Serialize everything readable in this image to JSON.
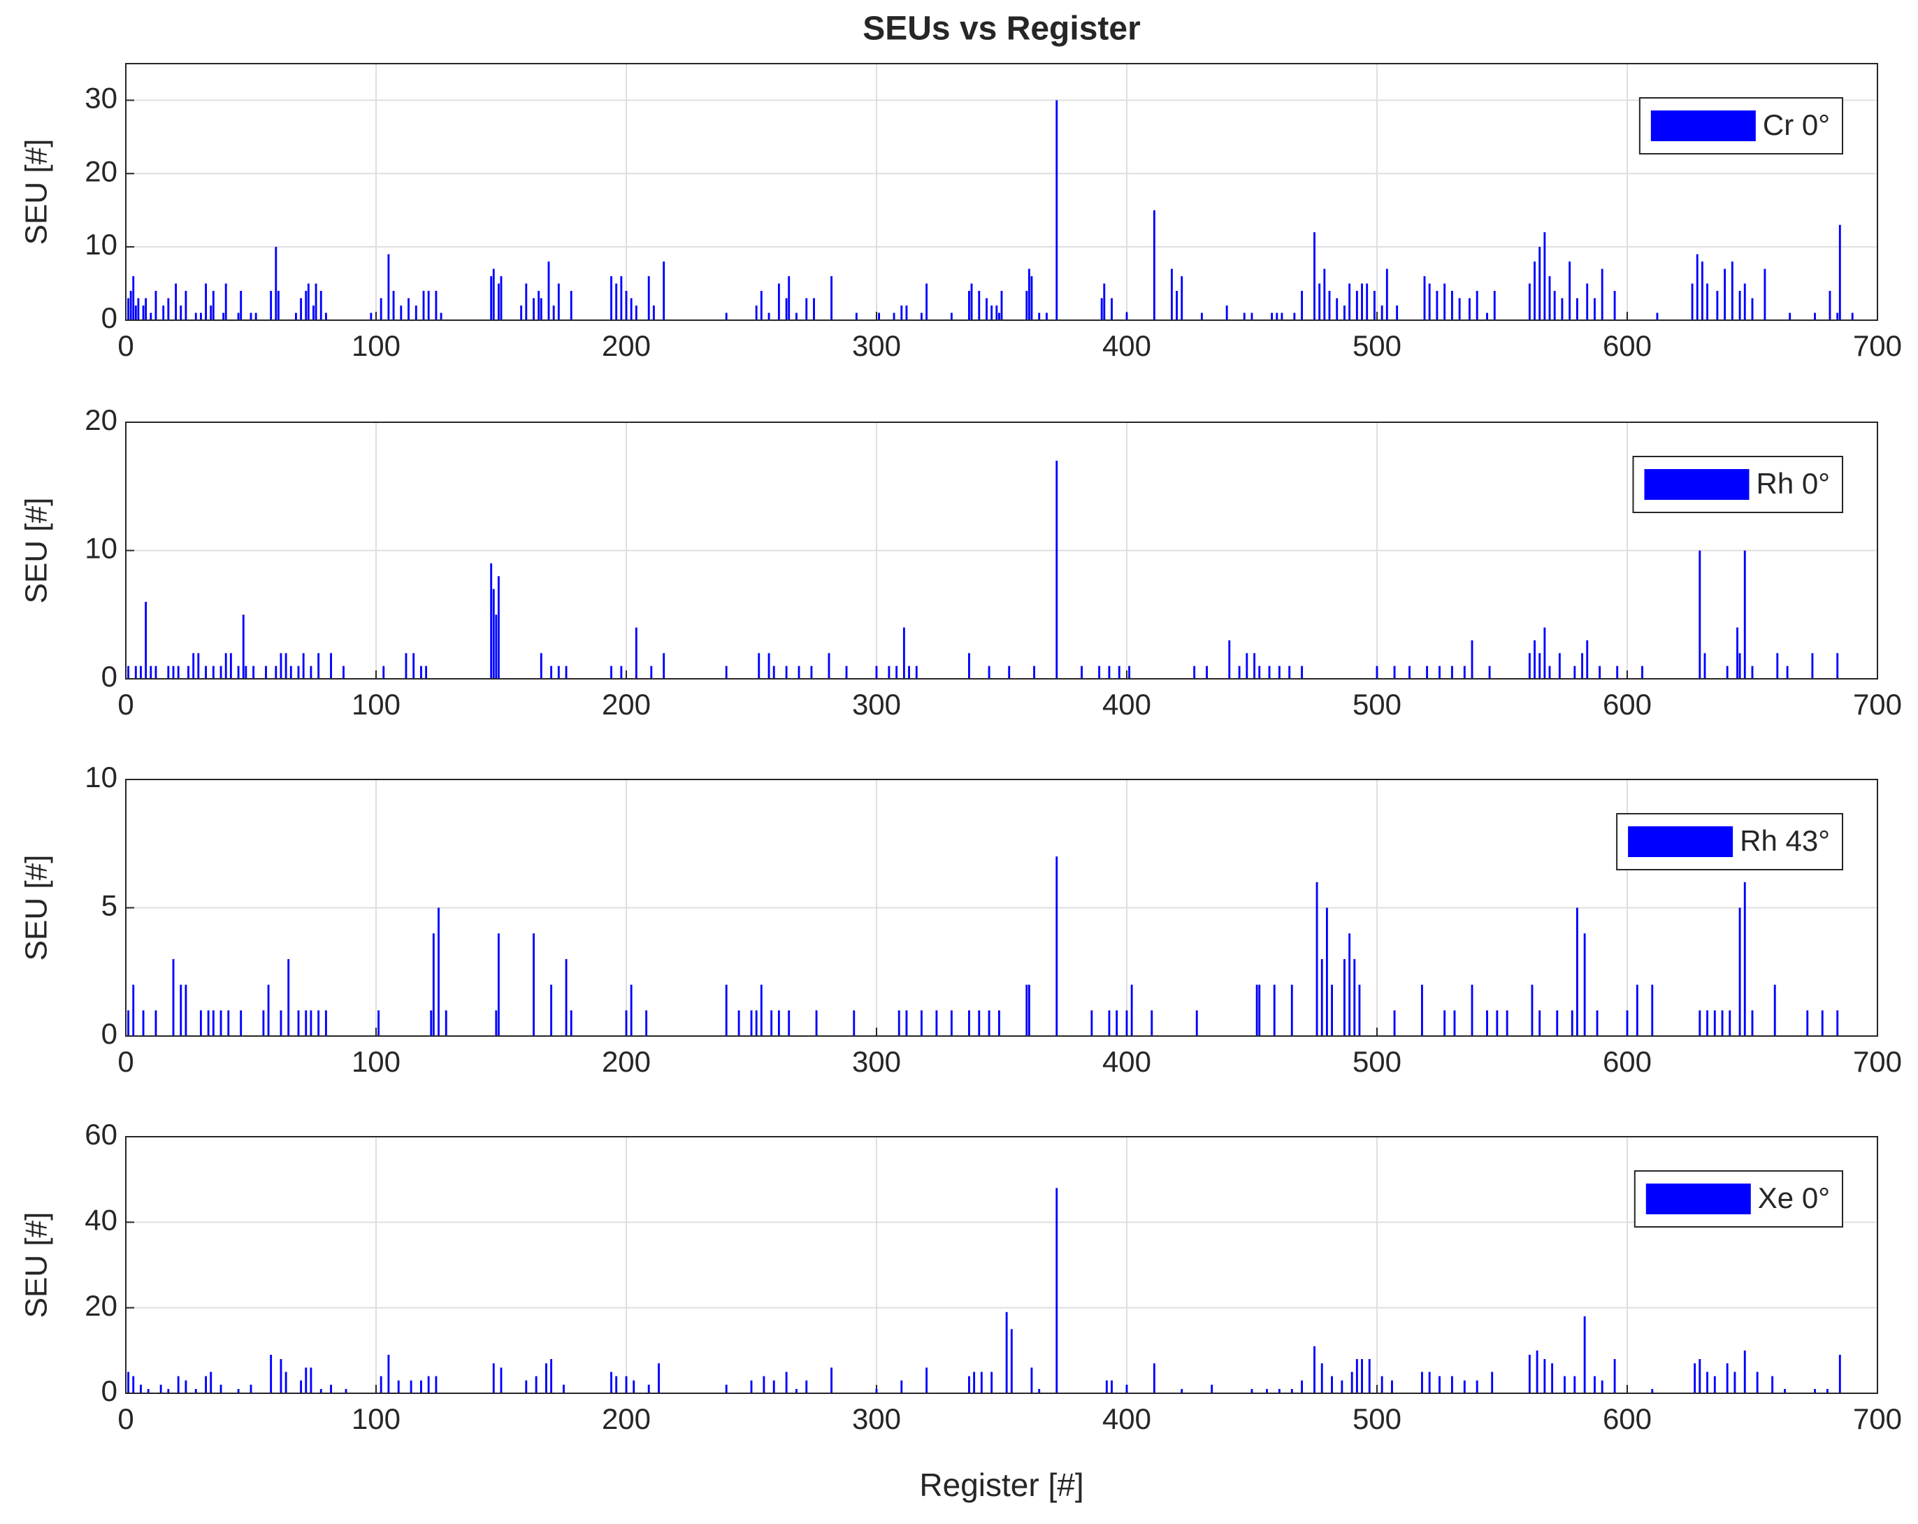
{
  "chart_data": [
    {
      "type": "bar",
      "title": "SEUs vs Register",
      "ylabel": "SEU [#]",
      "xlim": [
        0,
        700
      ],
      "xticks": [
        0,
        100,
        200,
        300,
        400,
        500,
        600,
        700
      ],
      "ylim": [
        0,
        35
      ],
      "yticks": [
        0,
        10,
        20,
        30
      ],
      "grid": true,
      "legend": "upper right",
      "x": [
        1,
        2,
        3,
        4,
        5,
        7,
        8,
        10,
        12,
        15,
        17,
        20,
        22,
        24,
        28,
        30,
        32,
        34,
        35,
        39,
        40,
        45,
        46,
        50,
        52,
        58,
        60,
        61,
        68,
        70,
        72,
        73,
        75,
        76,
        78,
        80,
        98,
        102,
        105,
        107,
        110,
        113,
        116,
        119,
        121,
        124,
        126,
        146,
        147,
        149,
        150,
        158,
        160,
        163,
        165,
        166,
        169,
        171,
        173,
        178,
        194,
        196,
        198,
        200,
        202,
        204,
        209,
        211,
        215,
        240,
        252,
        254,
        257,
        261,
        264,
        265,
        268,
        272,
        275,
        282,
        292,
        301,
        307,
        310,
        312,
        318,
        320,
        330,
        337,
        338,
        341,
        344,
        346,
        348,
        349,
        350,
        360,
        361,
        362,
        365,
        368,
        372,
        390,
        391,
        394,
        400,
        411,
        418,
        420,
        422,
        430,
        440,
        447,
        450,
        458,
        460,
        462,
        467,
        470,
        475,
        477,
        479,
        481,
        484,
        487,
        489,
        492,
        494,
        496,
        499,
        502,
        504,
        508,
        519,
        521,
        524,
        527,
        530,
        533,
        537,
        540,
        544,
        547,
        561,
        563,
        565,
        567,
        569,
        571,
        574,
        577,
        580,
        584,
        587,
        590,
        595,
        612,
        626,
        628,
        630,
        632,
        636,
        639,
        642,
        645,
        647,
        650,
        655,
        665,
        675,
        681,
        684,
        685,
        690
      ],
      "series": [
        {
          "name": "Cr 0°",
          "color": "#0000ff",
          "values": [
            3,
            4,
            6,
            2,
            3,
            2,
            3,
            1,
            4,
            2,
            3,
            5,
            2,
            4,
            1,
            1,
            5,
            2,
            4,
            1,
            5,
            1,
            4,
            1,
            1,
            4,
            10,
            4,
            1,
            3,
            4,
            5,
            2,
            5,
            4,
            1,
            1,
            3,
            9,
            4,
            2,
            3,
            2,
            4,
            4,
            4,
            1,
            6,
            7,
            5,
            6,
            2,
            5,
            3,
            4,
            3,
            8,
            2,
            5,
            4,
            6,
            5,
            6,
            4,
            3,
            2,
            6,
            2,
            8,
            1,
            2,
            4,
            1,
            5,
            3,
            6,
            1,
            3,
            3,
            6,
            1,
            1,
            1,
            2,
            2,
            1,
            5,
            1,
            4,
            5,
            4,
            3,
            2,
            2,
            1,
            4,
            4,
            7,
            6,
            1,
            1,
            30,
            3,
            5,
            3,
            1,
            15,
            7,
            4,
            6,
            1,
            2,
            1,
            1,
            1,
            1,
            1,
            1,
            4,
            12,
            5,
            7,
            4,
            3,
            2,
            5,
            4,
            5,
            5,
            4,
            2,
            7,
            2,
            6,
            5,
            4,
            5,
            4,
            3,
            3,
            4,
            1,
            4,
            5,
            8,
            10,
            12,
            6,
            4,
            3,
            8,
            3,
            5,
            3,
            7,
            4,
            1,
            5,
            9,
            8,
            5,
            4,
            7,
            8,
            4,
            5,
            3,
            7,
            1,
            1,
            4,
            1,
            13,
            1
          ]
        }
      ]
    },
    {
      "type": "bar",
      "ylabel": "SEU [#]",
      "xlim": [
        0,
        700
      ],
      "xticks": [
        0,
        100,
        200,
        300,
        400,
        500,
        600,
        700
      ],
      "ylim": [
        0,
        20
      ],
      "yticks": [
        0,
        10,
        20
      ],
      "grid": true,
      "legend": "upper right",
      "x": [
        1,
        4,
        6,
        8,
        10,
        12,
        17,
        19,
        21,
        25,
        27,
        29,
        32,
        35,
        38,
        40,
        42,
        45,
        47,
        48,
        51,
        56,
        60,
        62,
        64,
        66,
        69,
        71,
        74,
        77,
        82,
        87,
        103,
        112,
        115,
        118,
        120,
        146,
        147,
        148,
        149,
        166,
        170,
        173,
        176,
        194,
        198,
        204,
        210,
        215,
        240,
        253,
        257,
        259,
        264,
        269,
        274,
        281,
        288,
        300,
        305,
        308,
        311,
        313,
        316,
        337,
        345,
        353,
        363,
        372,
        382,
        389,
        393,
        397,
        401,
        427,
        432,
        441,
        445,
        448,
        451,
        453,
        457,
        461,
        465,
        470,
        500,
        507,
        513,
        520,
        525,
        530,
        535,
        538,
        545,
        561,
        563,
        565,
        567,
        569,
        573,
        579,
        582,
        584,
        589,
        596,
        606,
        629,
        631,
        640,
        644,
        645,
        647,
        650,
        660,
        664,
        674,
        684
      ],
      "series": [
        {
          "name": "Rh 0°",
          "color": "#0000ff",
          "values": [
            1,
            1,
            1,
            6,
            1,
            1,
            1,
            1,
            1,
            1,
            2,
            2,
            1,
            1,
            1,
            2,
            2,
            1,
            5,
            1,
            1,
            1,
            1,
            2,
            2,
            1,
            1,
            2,
            1,
            2,
            2,
            1,
            1,
            2,
            2,
            1,
            1,
            9,
            7,
            5,
            8,
            2,
            1,
            1,
            1,
            1,
            1,
            4,
            1,
            2,
            1,
            2,
            2,
            1,
            1,
            1,
            1,
            2,
            1,
            1,
            1,
            1,
            4,
            1,
            1,
            2,
            1,
            1,
            1,
            17,
            1,
            1,
            1,
            1,
            1,
            1,
            1,
            3,
            1,
            2,
            2,
            1,
            1,
            1,
            1,
            1,
            1,
            1,
            1,
            1,
            1,
            1,
            1,
            3,
            1,
            2,
            3,
            2,
            4,
            1,
            2,
            1,
            2,
            3,
            1,
            1,
            1,
            10,
            2,
            1,
            4,
            2,
            10,
            1,
            2,
            1,
            2,
            2
          ]
        }
      ]
    },
    {
      "type": "bar",
      "ylabel": "SEU [#]",
      "xlim": [
        0,
        700
      ],
      "xticks": [
        0,
        100,
        200,
        300,
        400,
        500,
        600,
        700
      ],
      "ylim": [
        0,
        10
      ],
      "yticks": [
        0,
        5,
        10
      ],
      "grid": true,
      "legend": "upper right",
      "x": [
        1,
        3,
        7,
        12,
        19,
        22,
        24,
        30,
        33,
        35,
        38,
        41,
        46,
        55,
        57,
        62,
        65,
        69,
        72,
        74,
        77,
        80,
        101,
        122,
        123,
        125,
        128,
        148,
        149,
        163,
        170,
        176,
        178,
        200,
        202,
        208,
        240,
        245,
        250,
        252,
        254,
        258,
        261,
        265,
        276,
        291,
        309,
        312,
        318,
        324,
        330,
        337,
        341,
        345,
        349,
        360,
        361,
        372,
        386,
        393,
        396,
        400,
        402,
        410,
        428,
        452,
        453,
        459,
        466,
        476,
        478,
        480,
        482,
        487,
        489,
        491,
        493,
        507,
        518,
        527,
        531,
        538,
        544,
        548,
        552,
        562,
        565,
        572,
        578,
        580,
        583,
        588,
        600,
        604,
        610,
        629,
        632,
        635,
        638,
        641,
        645,
        647,
        650,
        659,
        672,
        678,
        684
      ],
      "series": [
        {
          "name": "Rh 43°",
          "color": "#0000ff",
          "values": [
            1,
            2,
            1,
            1,
            3,
            2,
            2,
            1,
            1,
            1,
            1,
            1,
            1,
            1,
            2,
            1,
            3,
            1,
            1,
            1,
            1,
            1,
            1,
            1,
            4,
            5,
            1,
            1,
            4,
            4,
            2,
            3,
            1,
            1,
            2,
            1,
            2,
            1,
            1,
            1,
            2,
            1,
            1,
            1,
            1,
            1,
            1,
            1,
            1,
            1,
            1,
            1,
            1,
            1,
            1,
            2,
            2,
            7,
            1,
            1,
            1,
            1,
            2,
            1,
            1,
            2,
            2,
            2,
            2,
            6,
            3,
            5,
            2,
            3,
            4,
            3,
            2,
            1,
            2,
            1,
            1,
            2,
            1,
            1,
            1,
            2,
            1,
            1,
            1,
            5,
            4,
            1,
            1,
            2,
            2,
            1,
            1,
            1,
            1,
            1,
            5,
            6,
            1,
            2,
            1,
            1,
            1
          ]
        }
      ]
    },
    {
      "type": "bar",
      "xlabel": "Register [#]",
      "ylabel": "SEU [#]",
      "xlim": [
        0,
        700
      ],
      "xticks": [
        0,
        100,
        200,
        300,
        400,
        500,
        600,
        700
      ],
      "ylim": [
        0,
        60
      ],
      "yticks": [
        0,
        20,
        40,
        60
      ],
      "grid": true,
      "legend": "upper right",
      "x": [
        1,
        3,
        6,
        9,
        14,
        17,
        21,
        24,
        28,
        32,
        34,
        38,
        45,
        50,
        58,
        62,
        64,
        70,
        72,
        74,
        78,
        82,
        88,
        102,
        105,
        109,
        114,
        118,
        121,
        124,
        147,
        150,
        160,
        164,
        168,
        170,
        175,
        194,
        196,
        200,
        203,
        209,
        213,
        240,
        250,
        255,
        259,
        264,
        268,
        272,
        282,
        300,
        310,
        320,
        337,
        339,
        342,
        346,
        352,
        354,
        362,
        365,
        372,
        392,
        394,
        400,
        411,
        422,
        434,
        450,
        456,
        461,
        466,
        470,
        475,
        478,
        482,
        486,
        490,
        492,
        494,
        497,
        502,
        506,
        518,
        521,
        525,
        530,
        535,
        540,
        546,
        561,
        564,
        567,
        570,
        575,
        579,
        583,
        587,
        590,
        595,
        610,
        627,
        629,
        632,
        635,
        640,
        643,
        647,
        652,
        658,
        663,
        675,
        680,
        685
      ],
      "series": [
        {
          "name": "Xe 0°",
          "color": "#0000ff",
          "values": [
            5,
            4,
            2,
            1,
            2,
            1,
            4,
            3,
            1,
            4,
            5,
            2,
            1,
            2,
            9,
            8,
            5,
            3,
            6,
            6,
            1,
            2,
            1,
            4,
            9,
            3,
            3,
            3,
            4,
            4,
            7,
            6,
            3,
            4,
            7,
            8,
            2,
            5,
            4,
            4,
            3,
            2,
            7,
            2,
            3,
            4,
            3,
            5,
            1,
            3,
            6,
            1,
            3,
            6,
            4,
            5,
            5,
            5,
            19,
            15,
            6,
            1,
            48,
            3,
            3,
            2,
            7,
            1,
            2,
            1,
            1,
            1,
            1,
            3,
            11,
            7,
            4,
            3,
            5,
            8,
            8,
            8,
            4,
            3,
            5,
            5,
            4,
            4,
            3,
            3,
            5,
            9,
            10,
            8,
            7,
            4,
            4,
            18,
            4,
            3,
            8,
            1,
            7,
            8,
            5,
            4,
            7,
            5,
            10,
            5,
            4,
            1,
            1,
            1,
            9
          ]
        }
      ]
    }
  ]
}
